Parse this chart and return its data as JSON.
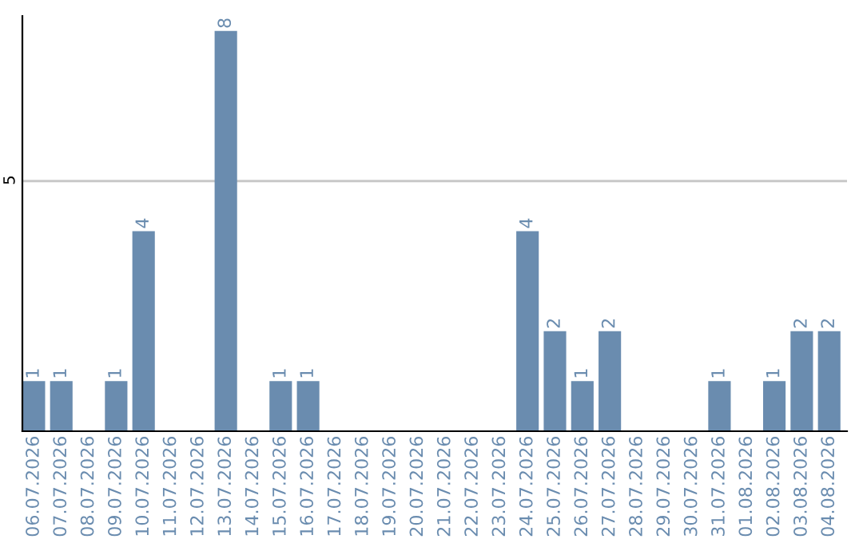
{
  "chart_data": {
    "type": "bar",
    "categories": [
      "06.07.2026",
      "07.07.2026",
      "08.07.2026",
      "09.07.2026",
      "10.07.2026",
      "11.07.2026",
      "12.07.2026",
      "13.07.2026",
      "14.07.2026",
      "15.07.2026",
      "16.07.2026",
      "17.07.2026",
      "18.07.2026",
      "19.07.2026",
      "20.07.2026",
      "21.07.2026",
      "22.07.2026",
      "23.07.2026",
      "24.07.2026",
      "25.07.2026",
      "26.07.2026",
      "27.07.2026",
      "28.07.2026",
      "29.07.2026",
      "30.07.2026",
      "31.07.2026",
      "01.08.2026",
      "02.08.2026",
      "03.08.2026",
      "04.08.2026"
    ],
    "values": [
      1,
      1,
      0,
      1,
      4,
      0,
      0,
      8,
      0,
      1,
      1,
      0,
      0,
      0,
      0,
      0,
      0,
      0,
      4,
      2,
      1,
      2,
      0,
      0,
      0,
      1,
      0,
      1,
      2,
      2
    ],
    "value_labels": [
      "1",
      "1",
      null,
      "1",
      "4",
      null,
      null,
      "8",
      null,
      "1",
      "1",
      null,
      null,
      null,
      null,
      null,
      null,
      null,
      "4",
      "2",
      "1",
      "2",
      null,
      null,
      null,
      "1",
      null,
      "1",
      "2",
      "2"
    ],
    "color": "#6a8caf",
    "ylim": [
      0,
      8.3
    ],
    "yticks": [
      5
    ],
    "grid": "y"
  }
}
